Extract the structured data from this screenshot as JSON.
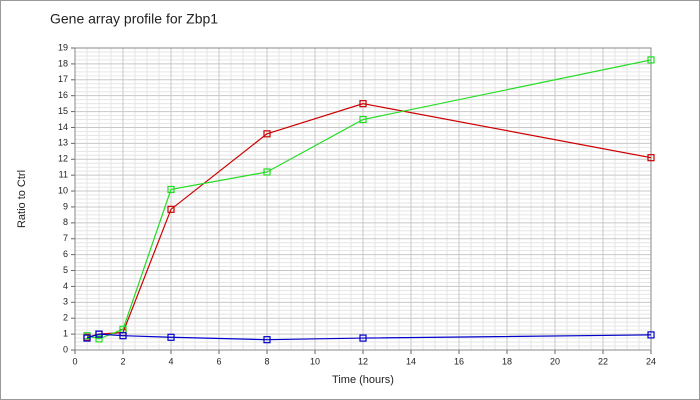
{
  "chart_data": {
    "type": "line",
    "title": "Gene array profile for Zbp1",
    "xlabel": "Time (hours)",
    "ylabel": "Ratio to Ctrl",
    "x": [
      0.5,
      1,
      2,
      4,
      8,
      12,
      24
    ],
    "series": [
      {
        "color": "#cc0000",
        "values": [
          0.8,
          1.0,
          1.1,
          8.85,
          13.6,
          15.5,
          12.1
        ]
      },
      {
        "color": "#22dd22",
        "values": [
          0.9,
          0.7,
          1.3,
          10.1,
          11.2,
          14.5,
          18.25
        ]
      },
      {
        "color": "#0000cc",
        "values": [
          0.75,
          1.0,
          0.9,
          0.8,
          0.65,
          0.75,
          0.95
        ]
      }
    ],
    "xlim": [
      0,
      24
    ],
    "xticks": [
      0,
      2,
      4,
      6,
      8,
      10,
      12,
      14,
      16,
      18,
      20,
      22,
      24
    ],
    "ylim": [
      0,
      19
    ],
    "yticks": [
      0,
      1,
      2,
      3,
      4,
      5,
      6,
      7,
      8,
      9,
      10,
      11,
      12,
      13,
      14,
      15,
      16,
      17,
      18,
      19
    ],
    "grid": true,
    "minor_grid": true
  }
}
